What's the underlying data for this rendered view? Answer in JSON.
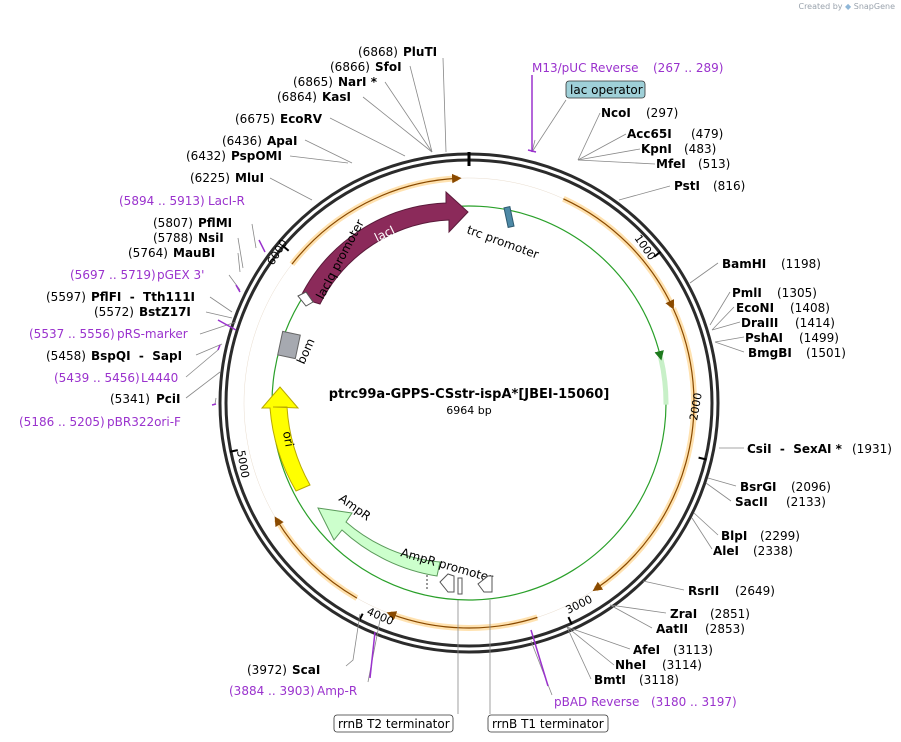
{
  "credit": {
    "prefix": "Created by",
    "brand": "SnapGene"
  },
  "plasmid": {
    "name": "ptrc99a-GPPS-CSstr-ispA*[JBEI-15060]",
    "size_label": "6964 bp",
    "length": 6964
  },
  "ticks": [
    "1000",
    "2000",
    "3000",
    "4000",
    "5000",
    "6000"
  ],
  "enzymes_right": [
    {
      "name": "NcoI",
      "pos": "(297)"
    },
    {
      "name": "Acc65I",
      "pos": "(479)"
    },
    {
      "name": "KpnI",
      "pos": "(483)"
    },
    {
      "name": "MfeI",
      "pos": "(513)"
    },
    {
      "name": "PstI",
      "pos": "(816)"
    },
    {
      "name": "BamHI",
      "pos": "(1198)"
    },
    {
      "name": "PmlI",
      "pos": "(1305)"
    },
    {
      "name": "EcoNI",
      "pos": "(1408)"
    },
    {
      "name": "DraIII",
      "pos": "(1414)"
    },
    {
      "name": "PshAI",
      "pos": "(1499)"
    },
    {
      "name": "BmgBI",
      "pos": "(1501)"
    },
    {
      "name": "CsiI  -  SexAI *",
      "pos": "(1931)"
    },
    {
      "name": "BsrGI",
      "pos": "(2096)"
    },
    {
      "name": "SacII",
      "pos": "(2133)"
    },
    {
      "name": "BlpI",
      "pos": "(2299)"
    },
    {
      "name": "AleI",
      "pos": "(2338)"
    },
    {
      "name": "RsrII",
      "pos": "(2649)"
    },
    {
      "name": "ZraI",
      "pos": "(2851)"
    },
    {
      "name": "AatII",
      "pos": "(2853)"
    },
    {
      "name": "AfeI",
      "pos": "(3113)"
    },
    {
      "name": "NheI",
      "pos": "(3114)"
    },
    {
      "name": "BmtI",
      "pos": "(3118)"
    }
  ],
  "enzymes_left": [
    {
      "name": "PluTI",
      "pos": "(6868)"
    },
    {
      "name": "SfoI",
      "pos": "(6866)"
    },
    {
      "name": "NarI *",
      "pos": "(6865)"
    },
    {
      "name": "KasI",
      "pos": "(6864)"
    },
    {
      "name": "EcoRV",
      "pos": "(6675)"
    },
    {
      "name": "ApaI",
      "pos": "(6436)"
    },
    {
      "name": "PspOMI",
      "pos": "(6432)"
    },
    {
      "name": "MluI",
      "pos": "(6225)"
    },
    {
      "name": "PflMI",
      "pos": "(5807)"
    },
    {
      "name": "NsiI",
      "pos": "(5788)"
    },
    {
      "name": "MauBI",
      "pos": "(5764)"
    },
    {
      "name": "PflFI  -  Tth111I",
      "pos": "(5597)"
    },
    {
      "name": "BstZ17I",
      "pos": "(5572)"
    },
    {
      "name": "BspQI  -  SapI",
      "pos": "(5458)"
    },
    {
      "name": "PciI",
      "pos": "(5341)"
    },
    {
      "name": "ScaI",
      "pos": "(3972)"
    }
  ],
  "primers": [
    {
      "name": "M13/pUC Reverse",
      "range": "(267 .. 289)"
    },
    {
      "name": "LacI-R",
      "range": "(5894 .. 5913)"
    },
    {
      "name": "pGEX 3'",
      "range": "(5697 .. 5719)"
    },
    {
      "name": "pRS-marker",
      "range": "(5537 .. 5556)"
    },
    {
      "name": "L4440",
      "range": "(5439 .. 5456)"
    },
    {
      "name": "pBR322ori-F",
      "range": "(5186 .. 5205)"
    },
    {
      "name": "Amp-R",
      "range": "(3884 .. 3903)"
    },
    {
      "name": "pBAD Reverse",
      "range": "(3180 .. 3197)"
    }
  ],
  "boxed": {
    "lac_operator": "lac operator",
    "rrnB_T2": "rrnB T2 terminator",
    "rrnB_T1": "rrnB T1 terminator"
  },
  "features": {
    "lacI": "lacI",
    "lacIq_promoter": "lacIq promoter",
    "trc_promoter": "trc promoter",
    "bom": "bom",
    "ori": "ori",
    "AmpR": "AmpR",
    "AmpR_promoter": "AmpR promoter"
  },
  "colors": {
    "lacI": "#8b2a5a",
    "ori": "#ffff00",
    "AmpR": "#ccffcc",
    "orf": "#f5a623",
    "primer": "#9a32cd",
    "operator_box": "#9fd0d8",
    "bom": "#a6a9b0",
    "inner_green": "#2aa02a"
  }
}
